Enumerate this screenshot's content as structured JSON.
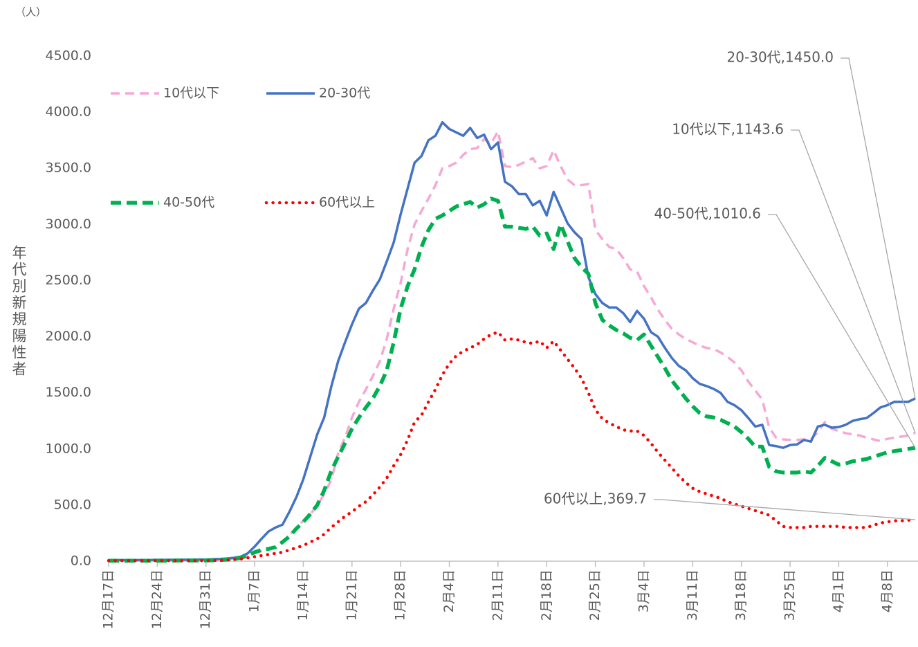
{
  "chart_data": {
    "type": "line",
    "y_label": "年代別新規陽性者",
    "unit": "（人）",
    "categories": [
      "12月17日",
      null,
      null,
      null,
      null,
      null,
      null,
      "12月24日",
      null,
      null,
      null,
      null,
      null,
      null,
      "12月31日",
      null,
      null,
      null,
      null,
      null,
      null,
      "1月7日",
      null,
      null,
      null,
      null,
      null,
      null,
      "1月14日",
      null,
      null,
      null,
      null,
      null,
      null,
      "1月21日",
      null,
      null,
      null,
      null,
      null,
      null,
      "1月28日",
      null,
      null,
      null,
      null,
      null,
      null,
      "2月4日",
      null,
      null,
      null,
      null,
      null,
      null,
      "2月11日",
      null,
      null,
      null,
      null,
      null,
      null,
      "2月18日",
      null,
      null,
      null,
      null,
      null,
      null,
      "2月25日",
      null,
      null,
      null,
      null,
      null,
      null,
      "3月4日",
      null,
      null,
      null,
      null,
      null,
      null,
      "3月11日",
      null,
      null,
      null,
      null,
      null,
      null,
      "3月18日",
      null,
      null,
      null,
      null,
      null,
      null,
      "3月25日",
      null,
      null,
      null,
      null,
      null,
      null,
      "4月1日",
      null,
      null,
      null,
      null,
      null,
      null,
      "4月8日",
      null,
      null,
      null,
      null
    ],
    "ylim": [
      0,
      4500
    ],
    "yticks": [
      {
        "value": 0,
        "label": "0.0"
      },
      {
        "value": 500,
        "label": "500.0"
      },
      {
        "value": 1000,
        "label": "1000.0"
      },
      {
        "value": 1500,
        "label": "1500.0"
      },
      {
        "value": 2000,
        "label": "2000.0"
      },
      {
        "value": 2500,
        "label": "2500.0"
      },
      {
        "value": 3000,
        "label": "3000.0"
      },
      {
        "value": 3500,
        "label": "3500.0"
      },
      {
        "value": 4000,
        "label": "4000.0"
      },
      {
        "value": 4500,
        "label": "4500.0"
      }
    ],
    "grid": false,
    "series": [
      {
        "name": "10代以下",
        "color": "#f6a8d4",
        "style": "dashed",
        "values": [
          5,
          5,
          5,
          6,
          6,
          6,
          6,
          7,
          7,
          7,
          8,
          8,
          8,
          9,
          10,
          12,
          15,
          20,
          25,
          35,
          50,
          70,
          90,
          110,
          130,
          170,
          230,
          300,
          360,
          420,
          490,
          600,
          720,
          960,
          1100,
          1280,
          1420,
          1530,
          1650,
          1780,
          1980,
          2250,
          2480,
          2780,
          3000,
          3120,
          3230,
          3350,
          3500,
          3520,
          3550,
          3620,
          3670,
          3680,
          3760,
          3720,
          3830,
          3520,
          3510,
          3530,
          3560,
          3590,
          3500,
          3520,
          3660,
          3520,
          3400,
          3350,
          3350,
          3360,
          2950,
          2870,
          2800,
          2780,
          2700,
          2600,
          2580,
          2450,
          2350,
          2240,
          2150,
          2070,
          2020,
          1980,
          1950,
          1920,
          1900,
          1890,
          1860,
          1820,
          1770,
          1700,
          1600,
          1520,
          1440,
          1190,
          1100,
          1085,
          1080,
          1080,
          1085,
          1085,
          1150,
          1240,
          1180,
          1160,
          1140,
          1130,
          1120,
          1100,
          1085,
          1070,
          1090,
          1100,
          1110,
          1120,
          1143.6
        ]
      },
      {
        "name": "20-30代",
        "color": "#4472c4",
        "style": "solid",
        "values": [
          10,
          10,
          10,
          10,
          10,
          11,
          11,
          12,
          12,
          12,
          13,
          13,
          14,
          15,
          15,
          18,
          20,
          24,
          30,
          40,
          70,
          130,
          200,
          265,
          300,
          325,
          440,
          570,
          730,
          930,
          1130,
          1280,
          1550,
          1780,
          1950,
          2110,
          2250,
          2300,
          2410,
          2510,
          2670,
          2840,
          3090,
          3320,
          3550,
          3610,
          3750,
          3790,
          3910,
          3850,
          3820,
          3790,
          3860,
          3770,
          3800,
          3670,
          3730,
          3380,
          3340,
          3270,
          3270,
          3170,
          3210,
          3080,
          3290,
          3150,
          3010,
          2930,
          2870,
          2530,
          2380,
          2300,
          2260,
          2260,
          2210,
          2130,
          2230,
          2160,
          2040,
          2000,
          1900,
          1810,
          1740,
          1700,
          1630,
          1580,
          1560,
          1535,
          1500,
          1420,
          1390,
          1345,
          1275,
          1200,
          1215,
          1035,
          1025,
          1010,
          1035,
          1040,
          1080,
          1065,
          1200,
          1215,
          1190,
          1195,
          1215,
          1250,
          1265,
          1275,
          1320,
          1370,
          1390,
          1420,
          1420,
          1420,
          1450
        ]
      },
      {
        "name": "40-50代",
        "color": "#00b050",
        "style": "bolddash",
        "values": [
          5,
          5,
          5,
          5,
          5,
          5,
          5,
          5,
          5,
          5,
          6,
          6,
          6,
          6,
          7,
          8,
          10,
          14,
          20,
          30,
          50,
          80,
          100,
          110,
          125,
          170,
          220,
          290,
          350,
          420,
          500,
          630,
          800,
          930,
          1050,
          1180,
          1280,
          1370,
          1450,
          1560,
          1700,
          1950,
          2250,
          2450,
          2600,
          2800,
          2950,
          3050,
          3080,
          3120,
          3160,
          3180,
          3200,
          3150,
          3180,
          3230,
          3210,
          2980,
          2980,
          2970,
          2960,
          2980,
          2900,
          2920,
          2780,
          3000,
          2850,
          2700,
          2620,
          2560,
          2300,
          2150,
          2100,
          2060,
          2030,
          1990,
          1970,
          2020,
          1920,
          1820,
          1720,
          1610,
          1530,
          1450,
          1380,
          1320,
          1290,
          1280,
          1260,
          1230,
          1200,
          1150,
          1090,
          1020,
          1020,
          840,
          800,
          790,
          790,
          790,
          800,
          790,
          850,
          920,
          890,
          860,
          870,
          890,
          900,
          910,
          930,
          950,
          970,
          980,
          990,
          1000,
          1010.6
        ]
      },
      {
        "name": "60代以上",
        "color": "#ff0000",
        "style": "dotted",
        "values": [
          5,
          5,
          5,
          5,
          5,
          5,
          5,
          5,
          5,
          5,
          5,
          5,
          5,
          5,
          5,
          6,
          8,
          10,
          15,
          20,
          30,
          40,
          50,
          60,
          70,
          80,
          100,
          120,
          140,
          170,
          200,
          240,
          300,
          350,
          400,
          440,
          490,
          530,
          590,
          660,
          740,
          850,
          950,
          1080,
          1240,
          1300,
          1420,
          1530,
          1660,
          1760,
          1830,
          1870,
          1900,
          1930,
          1980,
          2020,
          2040,
          1970,
          1980,
          1970,
          1950,
          1940,
          1960,
          1900,
          1960,
          1880,
          1800,
          1720,
          1630,
          1500,
          1350,
          1270,
          1230,
          1200,
          1170,
          1160,
          1160,
          1120,
          1050,
          970,
          900,
          830,
          760,
          700,
          650,
          620,
          600,
          580,
          560,
          530,
          510,
          490,
          470,
          450,
          430,
          410,
          360,
          310,
          300,
          300,
          300,
          310,
          310,
          310,
          310,
          310,
          300,
          300,
          300,
          300,
          320,
          340,
          350,
          360,
          360,
          365,
          369.7
        ]
      }
    ],
    "annotations": [
      "10代以下,1143.6",
      "20-30代,1450.0",
      "40-50代,1010.6",
      "60代以上,369.7"
    ]
  }
}
